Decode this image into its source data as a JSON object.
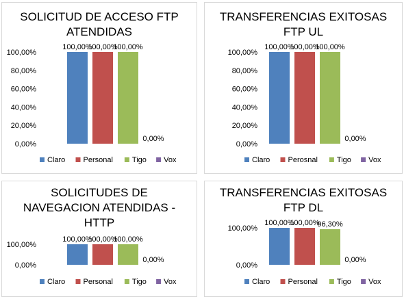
{
  "chart_data": [
    {
      "type": "bar",
      "title_lines": [
        "SOLICITUD DE ACCESO FTP",
        "ATENDIDAS"
      ],
      "categories": [
        "Claro",
        "Personal",
        "Tigo",
        "Vox"
      ],
      "values": [
        100,
        100,
        100,
        0
      ],
      "data_labels": [
        "100,00%",
        "100,00%",
        "100,00%",
        "0,00%"
      ],
      "yticks": [
        "0,00%",
        "20,00%",
        "40,00%",
        "60,00%",
        "80,00%",
        "100,00%"
      ],
      "ylim": [
        0,
        100
      ],
      "legend": [
        "Claro",
        "Personal",
        "Tigo",
        "Vox"
      ],
      "legend_position": "bottom",
      "colors": [
        "#4f81bd",
        "#c0504d",
        "#9bbb59",
        "#8064a2"
      ]
    },
    {
      "type": "bar",
      "title_lines": [
        "TRANSFERENCIAS EXITOSAS",
        "FTP UL"
      ],
      "categories": [
        "Claro",
        "Perosnal",
        "Tigo",
        "Vox"
      ],
      "values": [
        100,
        100,
        100,
        0
      ],
      "data_labels": [
        "100,00%",
        "100,00%",
        "100,00%",
        "0,00%"
      ],
      "yticks": [
        "0,00%",
        "20,00%",
        "40,00%",
        "60,00%",
        "80,00%",
        "100,00%"
      ],
      "ylim": [
        0,
        100
      ],
      "legend": [
        "Claro",
        "Perosnal",
        "Tigo",
        "Vox"
      ],
      "legend_position": "bottom",
      "colors": [
        "#4f81bd",
        "#c0504d",
        "#9bbb59",
        "#8064a2"
      ]
    },
    {
      "type": "bar",
      "title_lines": [
        "SOLICITUDES DE",
        "NAVEGACION ATENDIDAS -",
        "HTTP"
      ],
      "categories": [
        "Claro",
        "Personal",
        "Tigo",
        "Vox"
      ],
      "values": [
        100,
        100,
        100,
        0
      ],
      "data_labels": [
        "100,00%",
        "100,00%",
        "100,00%",
        "0,00%"
      ],
      "yticks": [
        "0,00%",
        "100,00%"
      ],
      "ylim": [
        0,
        100
      ],
      "legend": [
        "Claro",
        "Personal",
        "Tigo",
        "Vox"
      ],
      "legend_position": "bottom",
      "colors": [
        "#4f81bd",
        "#c0504d",
        "#9bbb59",
        "#8064a2"
      ]
    },
    {
      "type": "bar",
      "title_lines": [
        "TRANSFERENCIAS EXITOSAS",
        "FTP DL"
      ],
      "categories": [
        "Claro",
        "Personal",
        "Tigo",
        "Vox"
      ],
      "values": [
        100,
        100,
        96.3,
        0
      ],
      "data_labels": [
        "100,00%",
        "100,00%",
        "96,30%",
        "0,00%"
      ],
      "yticks": [
        "0,00%",
        "100,00%"
      ],
      "ylim": [
        0,
        100
      ],
      "legend": [
        "Claro",
        "Personal",
        "Tigo",
        "Vox"
      ],
      "legend_position": "bottom",
      "colors": [
        "#4f81bd",
        "#c0504d",
        "#9bbb59",
        "#8064a2"
      ]
    }
  ]
}
